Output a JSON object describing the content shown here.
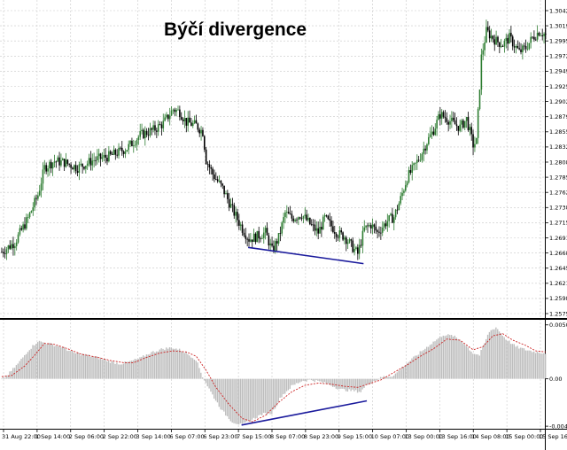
{
  "chart_data": [
    {
      "type": "candlestick",
      "title": "Býčí divergence",
      "ylim": [
        1.2575,
        1.3042
      ],
      "yticks": [
        "1.30425",
        "1.30190",
        "1.29955",
        "1.29725",
        "1.29490",
        "1.29255",
        "1.29020",
        "1.28790",
        "1.28555",
        "1.28320",
        "1.28085",
        "1.27855",
        "1.27620",
        "1.27385",
        "1.27150",
        "1.26915",
        "1.26680",
        "1.26450",
        "1.26215",
        "1.25980",
        "1.25750"
      ],
      "xticks": [
        "31 Aug 22:00",
        "1 Sep 14:00",
        "2 Sep 06:00",
        "2 Sep 22:00",
        "3 Sep 14:00",
        "6 Sep 07:00",
        "6 Sep 23:00",
        "7 Sep 15:00",
        "8 Sep 07:00",
        "8 Sep 23:00",
        "9 Sep 15:00",
        "10 Sep 07:00",
        "13 Sep 00:00",
        "13 Sep 16:00",
        "14 Sep 08:00",
        "15 Sep 00:00",
        "15 Sep 16:00"
      ],
      "bull_color": "#2e7d32",
      "bear_color": "#000000",
      "close_path": [
        [
          0,
          1.267
        ],
        [
          8,
          1.2685
        ],
        [
          16,
          1.2722
        ],
        [
          22,
          1.2758
        ],
        [
          26,
          1.28
        ],
        [
          32,
          1.281
        ],
        [
          38,
          1.2808
        ],
        [
          46,
          1.28
        ],
        [
          56,
          1.2812
        ],
        [
          66,
          1.2818
        ],
        [
          76,
          1.283
        ],
        [
          84,
          1.285
        ],
        [
          92,
          1.2858
        ],
        [
          98,
          1.2868
        ],
        [
          104,
          1.289
        ],
        [
          108,
          1.2886
        ],
        [
          112,
          1.287
        ],
        [
          118,
          1.2865
        ],
        [
          122,
          1.2855
        ],
        [
          124,
          1.2812
        ],
        [
          128,
          1.279
        ],
        [
          134,
          1.2768
        ],
        [
          140,
          1.2735
        ],
        [
          146,
          1.2706
        ],
        [
          150,
          1.269
        ],
        [
          154,
          1.2693
        ],
        [
          160,
          1.27
        ],
        [
          164,
          1.2672
        ],
        [
          168,
          1.2692
        ],
        [
          172,
          1.273
        ],
        [
          176,
          1.2722
        ],
        [
          182,
          1.2728
        ],
        [
          188,
          1.271
        ],
        [
          192,
          1.27
        ],
        [
          196,
          1.2722
        ],
        [
          200,
          1.271
        ],
        [
          204,
          1.2698
        ],
        [
          208,
          1.2694
        ],
        [
          212,
          1.268
        ],
        [
          216,
          1.2667
        ],
        [
          220,
          1.2705
        ],
        [
          224,
          1.2712
        ],
        [
          228,
          1.27
        ],
        [
          234,
          1.2718
        ],
        [
          238,
          1.2724
        ],
        [
          242,
          1.2752
        ],
        [
          246,
          1.2785
        ],
        [
          250,
          1.28
        ],
        [
          254,
          1.2818
        ],
        [
          258,
          1.284
        ],
        [
          262,
          1.2858
        ],
        [
          266,
          1.2882
        ],
        [
          270,
          1.2876
        ],
        [
          274,
          1.2868
        ],
        [
          278,
          1.2862
        ],
        [
          282,
          1.2875
        ],
        [
          286,
          1.2835
        ],
        [
          288,
          1.284
        ],
        [
          291,
          1.297
        ],
        [
          294,
          1.301
        ],
        [
          300,
          1.2995
        ],
        [
          304,
          1.299
        ],
        [
          308,
          1.3
        ],
        [
          314,
          1.2978
        ],
        [
          318,
          1.2985
        ],
        [
          322,
          1.3
        ],
        [
          326,
          1.301
        ],
        [
          330,
          1.3005
        ]
      ],
      "annotations": [
        {
          "type": "trendline",
          "color": "#1a1a9c",
          "from": [
            150,
            1.2677
          ],
          "to": [
            220,
            1.2652
          ]
        }
      ]
    },
    {
      "type": "bar+line",
      "indicator": "oscillator",
      "ylim": [
        -0.0044,
        0.005
      ],
      "yticks": [
        "0.005020",
        "0.00",
        "-0.00441"
      ],
      "bar_color": "#bdbdbd",
      "signal_color": "#cc2222",
      "histogram_path": [
        [
          0,
          -0.0001
        ],
        [
          4,
          0.0004
        ],
        [
          10,
          0.0014
        ],
        [
          16,
          0.0026
        ],
        [
          22,
          0.0035
        ],
        [
          28,
          0.0033
        ],
        [
          36,
          0.003
        ],
        [
          44,
          0.0024
        ],
        [
          52,
          0.0022
        ],
        [
          60,
          0.0019
        ],
        [
          66,
          0.0016
        ],
        [
          72,
          0.0014
        ],
        [
          78,
          0.0016
        ],
        [
          84,
          0.0019
        ],
        [
          90,
          0.0024
        ],
        [
          98,
          0.0028
        ],
        [
          104,
          0.0029
        ],
        [
          110,
          0.0026
        ],
        [
          118,
          0.0018
        ],
        [
          122,
          0.0002
        ],
        [
          128,
          -0.0015
        ],
        [
          134,
          -0.003
        ],
        [
          140,
          -0.004
        ],
        [
          146,
          -0.0043
        ],
        [
          152,
          -0.0038
        ],
        [
          158,
          -0.0033
        ],
        [
          164,
          -0.0032
        ],
        [
          170,
          -0.0016
        ],
        [
          176,
          -0.0007
        ],
        [
          182,
          -0.0002
        ],
        [
          188,
          -0.0001
        ],
        [
          194,
          -0.0003
        ],
        [
          200,
          -0.0006
        ],
        [
          206,
          -0.001
        ],
        [
          212,
          -0.0011
        ],
        [
          218,
          -0.0012
        ],
        [
          222,
          -0.0005
        ],
        [
          226,
          -0.0002
        ],
        [
          232,
          0.0002
        ],
        [
          238,
          0.0003
        ],
        [
          244,
          0.0012
        ],
        [
          252,
          0.0022
        ],
        [
          260,
          0.0032
        ],
        [
          268,
          0.0041
        ],
        [
          274,
          0.004
        ],
        [
          280,
          0.0034
        ],
        [
          286,
          0.0024
        ],
        [
          290,
          0.0022
        ],
        [
          296,
          0.0044
        ],
        [
          300,
          0.0048
        ],
        [
          306,
          0.0037
        ],
        [
          312,
          0.003
        ],
        [
          318,
          0.0027
        ],
        [
          324,
          0.0025
        ],
        [
          330,
          0.0024
        ]
      ],
      "signal_path": [
        [
          0,
          0.0002
        ],
        [
          6,
          0.0003
        ],
        [
          14,
          0.0012
        ],
        [
          20,
          0.0022
        ],
        [
          26,
          0.0033
        ],
        [
          32,
          0.0032
        ],
        [
          40,
          0.0028
        ],
        [
          48,
          0.0023
        ],
        [
          58,
          0.002
        ],
        [
          66,
          0.0017
        ],
        [
          74,
          0.0015
        ],
        [
          80,
          0.0015
        ],
        [
          88,
          0.002
        ],
        [
          96,
          0.0024
        ],
        [
          104,
          0.0026
        ],
        [
          112,
          0.0025
        ],
        [
          118,
          0.0021
        ],
        [
          124,
          0.0008
        ],
        [
          130,
          -0.0008
        ],
        [
          138,
          -0.0024
        ],
        [
          146,
          -0.0037
        ],
        [
          152,
          -0.004
        ],
        [
          160,
          -0.0034
        ],
        [
          168,
          -0.0022
        ],
        [
          176,
          -0.0012
        ],
        [
          184,
          -0.0006
        ],
        [
          192,
          -0.0004
        ],
        [
          200,
          -0.0005
        ],
        [
          208,
          -0.0007
        ],
        [
          216,
          -0.0008
        ],
        [
          222,
          -0.0005
        ],
        [
          230,
          -0.0001
        ],
        [
          238,
          0.0006
        ],
        [
          246,
          0.0013
        ],
        [
          254,
          0.0021
        ],
        [
          262,
          0.0028
        ],
        [
          270,
          0.0037
        ],
        [
          278,
          0.0036
        ],
        [
          286,
          0.0027
        ],
        [
          292,
          0.003
        ],
        [
          298,
          0.004
        ],
        [
          304,
          0.0042
        ],
        [
          310,
          0.0036
        ],
        [
          318,
          0.0031
        ],
        [
          324,
          0.0026
        ],
        [
          330,
          0.0025
        ]
      ],
      "annotations": [
        {
          "type": "trendline",
          "color": "#1a1a9c",
          "from": [
            146,
            -0.0043
          ],
          "to": [
            222,
            -0.00205
          ]
        }
      ]
    }
  ]
}
